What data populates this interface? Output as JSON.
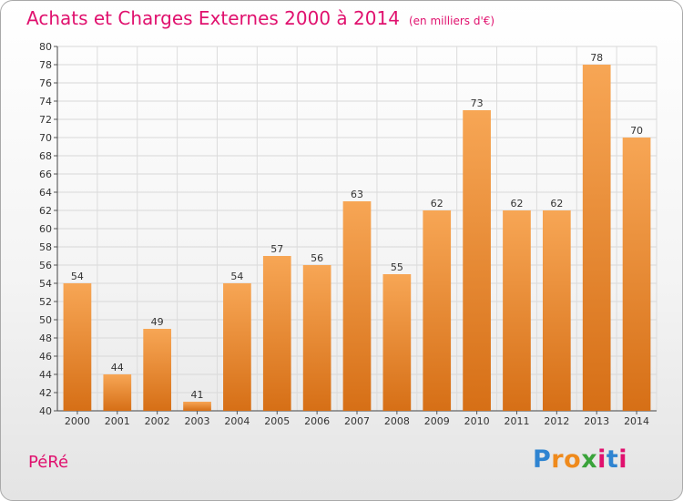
{
  "header": {
    "title": "Achats et Charges Externes 2000 à 2014",
    "unit": "(en milliers d'€)"
  },
  "footer": {
    "place": "PéRé",
    "logo": "Proxiti"
  },
  "colors": {
    "title": "#e0116e",
    "bar_top": "#f7a655",
    "bar_bottom": "#d66f16"
  },
  "chart_data": {
    "type": "bar",
    "categories": [
      "2000",
      "2001",
      "2002",
      "2003",
      "2004",
      "2005",
      "2006",
      "2007",
      "2008",
      "2009",
      "2010",
      "2011",
      "2012",
      "2013",
      "2014"
    ],
    "values": [
      54,
      44,
      49,
      41,
      54,
      57,
      56,
      63,
      55,
      62,
      73,
      62,
      62,
      78,
      70
    ],
    "ylim": [
      40,
      80
    ],
    "yticks": [
      40,
      42,
      44,
      46,
      48,
      50,
      52,
      54,
      56,
      58,
      60,
      62,
      64,
      66,
      68,
      70,
      72,
      74,
      76,
      78,
      80
    ],
    "grid": true,
    "legend": "none"
  }
}
